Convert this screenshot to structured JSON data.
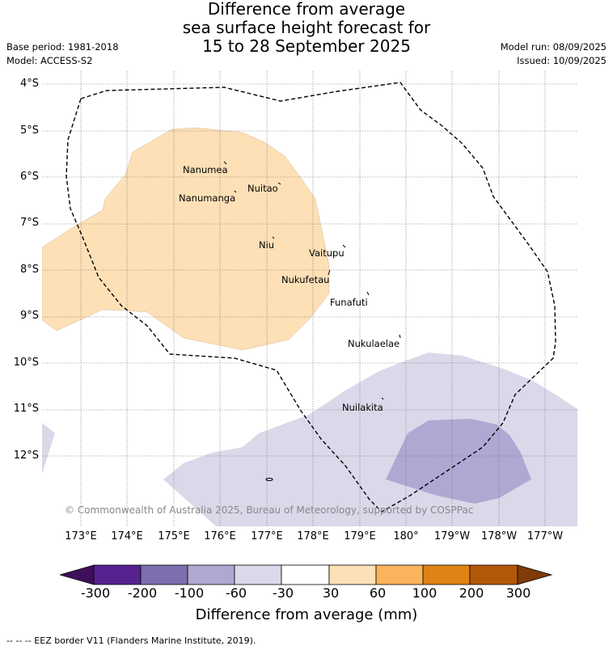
{
  "title": {
    "line1": "Difference from average",
    "line2": "sea surface height forecast for",
    "line3": "15 to 28 September 2025"
  },
  "meta": {
    "base_period": "Base period: 1981-2018",
    "model": "Model: ACCESS-S2",
    "model_run": "Model run: 08/09/2025",
    "issued": "Issued: 10/09/2025"
  },
  "map": {
    "lat_labels": [
      "4°S",
      "5°S",
      "6°S",
      "7°S",
      "8°S",
      "9°S",
      "10°S",
      "11°S",
      "12°S"
    ],
    "lon_labels": [
      "173°E",
      "174°E",
      "175°E",
      "176°E",
      "177°E",
      "178°E",
      "179°E",
      "180°",
      "179°W",
      "178°W",
      "177°W"
    ],
    "places": [
      "Nanumea",
      "Nuitao",
      "Nanumanga",
      "Niu",
      "Vaitupu",
      "Nukufetau",
      "Funafuti",
      "Nukulaelae",
      "Nuilakita"
    ],
    "copyright": "© Commonwealth of Australia 2025, Bureau of Meteorology, supported by COSPPac"
  },
  "colorbar": {
    "ticks": [
      "-300",
      "-200",
      "-100",
      "-60",
      "-30",
      "30",
      "60",
      "100",
      "200",
      "300"
    ],
    "colors": [
      "#3f0f5c",
      "#55228f",
      "#7d6fae",
      "#aea9d2",
      "#d9d9ea",
      "#ffffff",
      "#fde0b6",
      "#fbb45c",
      "#e08214",
      "#b35806",
      "#7f3b08"
    ],
    "label": "Difference from average (mm)"
  },
  "footer": "-- -- -- EEZ border V11 (Flanders Marine Institute, 2019)."
}
